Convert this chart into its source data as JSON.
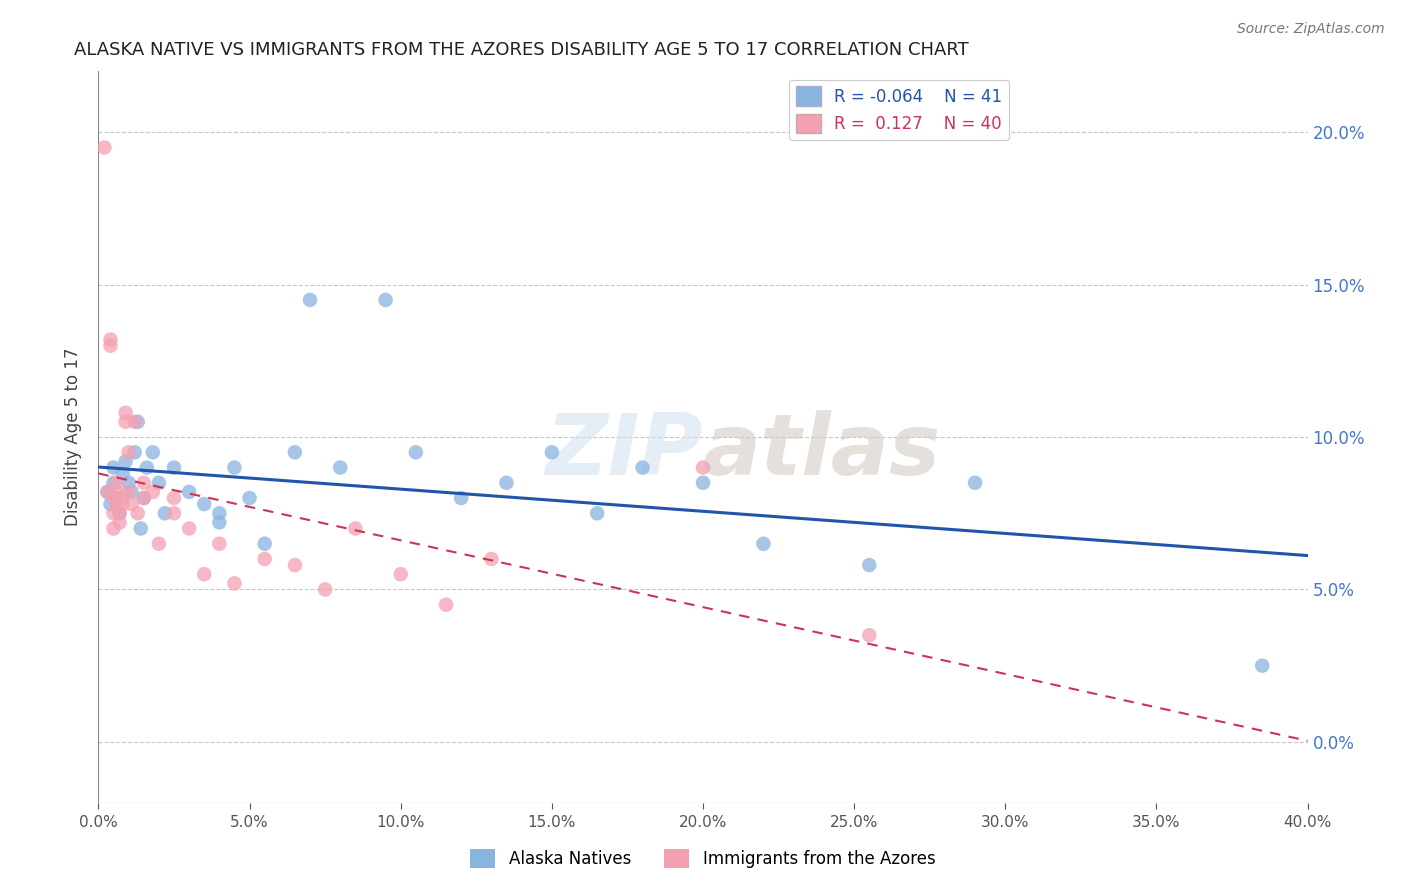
{
  "title": "ALASKA NATIVE VS IMMIGRANTS FROM THE AZORES DISABILITY AGE 5 TO 17 CORRELATION CHART",
  "source": "Source: ZipAtlas.com",
  "ylabel": "Disability Age 5 to 17",
  "xlabel_ticks": [
    0.0,
    5.0,
    10.0,
    15.0,
    20.0,
    25.0,
    30.0,
    35.0,
    40.0
  ],
  "ylabel_ticks": [
    0.0,
    5.0,
    10.0,
    15.0,
    20.0
  ],
  "xlim": [
    0.0,
    40.0
  ],
  "ylim": [
    -2.0,
    22.0
  ],
  "R_blue": -0.064,
  "N_blue": 41,
  "R_pink": 0.127,
  "N_pink": 40,
  "blue_color": "#8ab4e0",
  "pink_color": "#f4a0b0",
  "trend_blue_color": "#2255aa",
  "trend_pink_color": "#cc3355",
  "watermark_color": "#c8d8e8",
  "blue_x": [
    0.3,
    0.4,
    0.5,
    0.5,
    0.6,
    0.7,
    0.8,
    0.9,
    1.0,
    1.1,
    1.2,
    1.3,
    1.4,
    1.5,
    1.6,
    1.8,
    2.0,
    2.2,
    2.5,
    3.0,
    3.5,
    4.0,
    4.0,
    4.5,
    5.0,
    5.5,
    6.5,
    7.0,
    8.0,
    9.5,
    10.5,
    12.0,
    13.5,
    15.0,
    16.5,
    18.0,
    20.0,
    22.0,
    25.5,
    29.0,
    38.5
  ],
  "blue_y": [
    8.2,
    7.8,
    8.5,
    9.0,
    8.0,
    7.5,
    8.8,
    9.2,
    8.5,
    8.2,
    9.5,
    10.5,
    7.0,
    8.0,
    9.0,
    9.5,
    8.5,
    7.5,
    9.0,
    8.2,
    7.8,
    7.2,
    7.5,
    9.0,
    8.0,
    6.5,
    9.5,
    14.5,
    9.0,
    14.5,
    9.5,
    8.0,
    8.5,
    9.5,
    7.5,
    9.0,
    8.5,
    6.5,
    5.8,
    8.5,
    2.5
  ],
  "pink_x": [
    0.2,
    0.3,
    0.4,
    0.4,
    0.5,
    0.5,
    0.5,
    0.6,
    0.6,
    0.6,
    0.7,
    0.7,
    0.8,
    0.8,
    0.9,
    0.9,
    1.0,
    1.0,
    1.1,
    1.2,
    1.3,
    1.5,
    1.5,
    1.8,
    2.0,
    2.5,
    2.5,
    3.0,
    3.5,
    4.0,
    4.5,
    5.5,
    6.5,
    7.5,
    8.5,
    10.0,
    11.5,
    13.0,
    20.0,
    25.5
  ],
  "pink_y": [
    19.5,
    8.2,
    13.0,
    13.2,
    7.0,
    7.5,
    8.0,
    8.2,
    7.8,
    8.5,
    7.2,
    7.5,
    7.8,
    8.0,
    10.5,
    10.8,
    8.2,
    9.5,
    7.8,
    10.5,
    7.5,
    8.0,
    8.5,
    8.2,
    6.5,
    7.5,
    8.0,
    7.0,
    5.5,
    6.5,
    5.2,
    6.0,
    5.8,
    5.0,
    7.0,
    5.5,
    4.5,
    6.0,
    9.0,
    3.5
  ]
}
